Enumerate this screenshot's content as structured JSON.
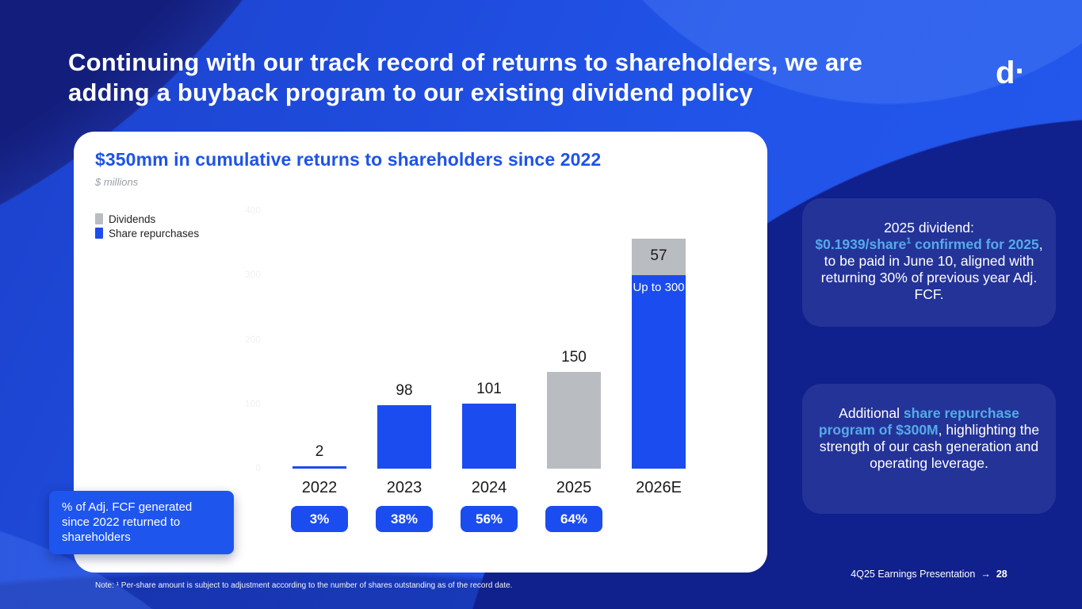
{
  "slide": {
    "title_lines": [
      "Continuing with our track record of returns to shareholders, we are",
      "adding a buyback program to our existing dividend policy"
    ],
    "logo_text": "d",
    "logo_dot": "·"
  },
  "colors": {
    "accent_blue": "#1b4cf0",
    "dividends_gray": "#b9bcc0",
    "highlight_skyblue": "#55abe8",
    "chart_title_blue": "#1d53e8",
    "background_blue": "#2153e8",
    "dark_navy": "#10208d"
  },
  "chart_data": {
    "type": "bar",
    "stacked": true,
    "title": "$350mm in cumulative returns to shareholders since 2022",
    "subtitle": "$ millions",
    "xlabel": "",
    "ylabel": "$ millions",
    "ylim": [
      0,
      400
    ],
    "y_ticks": [
      0,
      100,
      200,
      300,
      400
    ],
    "grid": false,
    "legend_position": "top-left",
    "legend": [
      {
        "label": "Dividends",
        "color": "#b9bcc0"
      },
      {
        "label": "Share repurchases",
        "color": "#1b4cf0"
      }
    ],
    "series_colors": {
      "Dividends": "#b9bcc0",
      "Share repurchases": "#1b4cf0"
    },
    "categories": [
      "2022",
      "2023",
      "2024",
      "2025",
      "2026E"
    ],
    "bars": [
      {
        "category": "2022",
        "top_label": "2",
        "pct_badge": "3%",
        "segments": [
          {
            "series": "Share repurchases",
            "value": 2
          }
        ]
      },
      {
        "category": "2023",
        "top_label": "98",
        "pct_badge": "38%",
        "segments": [
          {
            "series": "Share repurchases",
            "value": 98
          }
        ]
      },
      {
        "category": "2024",
        "top_label": "101",
        "pct_badge": "56%",
        "segments": [
          {
            "series": "Share repurchases",
            "value": 101
          }
        ]
      },
      {
        "category": "2025",
        "top_label": "150",
        "pct_badge": "64%",
        "segments": [
          {
            "series": "Dividends",
            "value": 150
          }
        ]
      },
      {
        "category": "2026E",
        "top_label": "",
        "pct_badge": null,
        "segments": [
          {
            "series": "Share repurchases",
            "value": 300,
            "inner_label": "Up to 300",
            "inner_label_color": "#ffffff",
            "inner_label_align": "top",
            "inner_label_size": 15
          },
          {
            "series": "Dividends",
            "value": 57,
            "inner_label": "57",
            "inner_label_color": "#1a1a1a",
            "inner_label_align": "middle",
            "inner_label_size": 19
          }
        ]
      }
    ]
  },
  "callout": {
    "text": "% of Adj. FCF generated since 2022 returned to shareholders"
  },
  "side_panels": [
    {
      "parts": [
        {
          "text": "2025 dividend:\n",
          "highlight": false
        },
        {
          "text": "$0.1939/share",
          "highlight": true
        },
        {
          "text": "1",
          "highlight": true,
          "sup": true
        },
        {
          "text": " confirmed for 2025",
          "highlight": true
        },
        {
          "text": ", to be paid in June 10, aligned with returning 30% of previous year Adj. FCF.",
          "highlight": false
        }
      ]
    },
    {
      "parts": [
        {
          "text": "Additional ",
          "highlight": false
        },
        {
          "text": "share repurchase program of $300M",
          "highlight": true
        },
        {
          "text": ", highlighting the strength of our cash generation and operating leverage.",
          "highlight": false
        }
      ]
    }
  ],
  "footer": {
    "note": "Note: ¹ Per-share amount is subject to adjustment according to the number of shares outstanding as of the record date.",
    "deck_name": "4Q25 Earnings Presentation",
    "arrow": "→",
    "page_number": "28"
  }
}
